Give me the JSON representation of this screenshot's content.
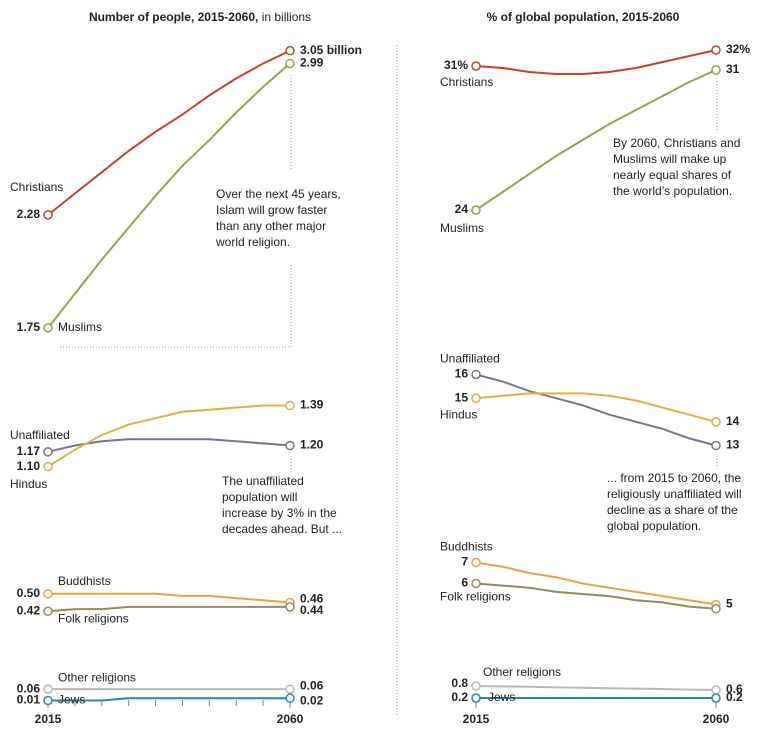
{
  "chart_data": [
    {
      "type": "line",
      "title": "Number of people, 2015-2060,",
      "subtitle": "in billions",
      "x": [
        2015,
        2020,
        2025,
        2030,
        2035,
        2040,
        2045,
        2050,
        2055,
        2060
      ],
      "xlim": [
        2015,
        2060
      ],
      "xticks": [
        2015,
        2060
      ],
      "xminorticks": [
        2020,
        2025,
        2030,
        2035,
        2040,
        2045,
        2050,
        2055
      ],
      "groups": [
        {
          "ylim": [
            1.74,
            3.1
          ],
          "series": [
            {
              "name": "Christians",
              "color": "#c8412b",
              "values": [
                2.28,
                2.38,
                2.48,
                2.58,
                2.67,
                2.75,
                2.84,
                2.92,
                2.99,
                3.05
              ],
              "value_labels": [
                "2.28",
                null,
                null,
                null,
                null,
                null,
                null,
                null,
                null,
                "3.05 billion"
              ]
            },
            {
              "name": "Muslims",
              "color": "#8fa84a",
              "values": [
                1.75,
                1.91,
                2.07,
                2.22,
                2.37,
                2.51,
                2.63,
                2.76,
                2.88,
                2.99
              ],
              "value_labels": [
                "1.75",
                null,
                null,
                null,
                null,
                null,
                null,
                null,
                null,
                "2.99"
              ]
            }
          ]
        },
        {
          "ylim": [
            1.06,
            1.44
          ],
          "series": [
            {
              "name": "Unaffiliated",
              "color": "#7b7296",
              "values": [
                1.17,
                1.2,
                1.22,
                1.23,
                1.23,
                1.23,
                1.23,
                1.22,
                1.21,
                1.2
              ],
              "value_labels": [
                "1.17",
                null,
                null,
                null,
                null,
                null,
                null,
                null,
                null,
                "1.20"
              ]
            },
            {
              "name": "Hindus",
              "color": "#e0b040",
              "values": [
                1.1,
                1.18,
                1.25,
                1.3,
                1.33,
                1.36,
                1.37,
                1.38,
                1.39,
                1.39
              ],
              "value_labels": [
                "1.10",
                null,
                null,
                null,
                null,
                null,
                null,
                null,
                null,
                "1.39"
              ]
            }
          ]
        },
        {
          "ylim": [
            0.38,
            0.54
          ],
          "series": [
            {
              "name": "Buddhists",
              "color": "#eaa33f",
              "values": [
                0.5,
                0.5,
                0.5,
                0.5,
                0.5,
                0.49,
                0.49,
                0.48,
                0.47,
                0.46
              ],
              "value_labels": [
                "0.50",
                null,
                null,
                null,
                null,
                null,
                null,
                null,
                null,
                "0.46"
              ]
            },
            {
              "name": "Folk religions",
              "color": "#978a5a",
              "values": [
                0.42,
                0.43,
                0.43,
                0.44,
                0.44,
                0.44,
                0.44,
                0.44,
                0.44,
                0.44
              ],
              "value_labels": [
                "0.42",
                null,
                null,
                null,
                null,
                null,
                null,
                null,
                null,
                "0.44"
              ]
            }
          ]
        },
        {
          "ylim": [
            -0.01,
            0.1
          ],
          "series": [
            {
              "name": "Other religions",
              "color": "#b8b8b8",
              "values": [
                0.06,
                0.06,
                0.06,
                0.06,
                0.06,
                0.06,
                0.06,
                0.06,
                0.06,
                0.06
              ],
              "value_labels": [
                "0.06",
                null,
                null,
                null,
                null,
                null,
                null,
                null,
                null,
                "0.06"
              ]
            },
            {
              "name": "Jews",
              "color": "#2a87b5",
              "values": [
                0.01,
                0.01,
                0.01,
                0.02,
                0.02,
                0.02,
                0.02,
                0.02,
                0.02,
                0.02
              ],
              "value_labels": [
                "0.01",
                null,
                null,
                null,
                null,
                null,
                null,
                null,
                null,
                "0.02"
              ]
            }
          ]
        }
      ],
      "annotations": [
        {
          "lines": [
            "Over the next 45 years,",
            "Islam will grow faster",
            "than any other major",
            "world religion."
          ]
        },
        {
          "lines": [
            "The unaffiliated",
            "population will",
            "increase by 3% in the",
            "decades ahead. But ..."
          ]
        }
      ]
    },
    {
      "type": "line",
      "title": "% of global population, 2015-2060",
      "x": [
        2015,
        2020,
        2025,
        2030,
        2035,
        2040,
        2045,
        2050,
        2055,
        2060
      ],
      "xlim": [
        2015,
        2060
      ],
      "xticks": [
        2015,
        2060
      ],
      "groups": [
        {
          "ylim": [
            23.5,
            32.5
          ],
          "series": [
            {
              "name": "Christians",
              "color": "#c8412b",
              "values": [
                31.2,
                31.1,
                30.9,
                30.8,
                30.8,
                30.9,
                31.1,
                31.4,
                31.7,
                32.0
              ],
              "value_labels": [
                "31%",
                null,
                null,
                null,
                null,
                null,
                null,
                null,
                null,
                "32%"
              ]
            },
            {
              "name": "Muslims",
              "color": "#8fa84a",
              "values": [
                24,
                24.9,
                25.8,
                26.7,
                27.5,
                28.3,
                29.0,
                29.7,
                30.4,
                31
              ],
              "value_labels": [
                "24",
                null,
                null,
                null,
                null,
                null,
                null,
                null,
                null,
                "31"
              ]
            }
          ]
        },
        {
          "ylim": [
            12.6,
            16.4
          ],
          "series": [
            {
              "name": "Unaffiliated",
              "color": "#7b7296",
              "values": [
                16,
                15.7,
                15.3,
                15.0,
                14.7,
                14.3,
                14.0,
                13.7,
                13.3,
                13
              ],
              "value_labels": [
                "16",
                null,
                null,
                null,
                null,
                null,
                null,
                null,
                null,
                "13"
              ]
            },
            {
              "name": "Hindus",
              "color": "#e0b040",
              "values": [
                15,
                15.1,
                15.2,
                15.2,
                15.2,
                15.1,
                14.9,
                14.6,
                14.3,
                14
              ],
              "value_labels": [
                "15",
                null,
                null,
                null,
                null,
                null,
                null,
                null,
                null,
                "14"
              ]
            }
          ]
        },
        {
          "ylim": [
            4.5,
            7.5
          ],
          "series": [
            {
              "name": "Buddhists",
              "color": "#eaa33f",
              "values": [
                7,
                6.8,
                6.5,
                6.3,
                6.0,
                5.8,
                5.6,
                5.4,
                5.2,
                5.0
              ],
              "value_labels": [
                "7",
                null,
                null,
                null,
                null,
                null,
                null,
                null,
                null,
                "5"
              ]
            },
            {
              "name": "Folk religions",
              "color": "#978a5a",
              "values": [
                6.0,
                5.9,
                5.8,
                5.6,
                5.5,
                5.4,
                5.2,
                5.1,
                4.9,
                4.8
              ],
              "value_labels": [
                "6",
                null,
                null,
                null,
                null,
                null,
                null,
                null,
                null,
                null
              ]
            }
          ]
        },
        {
          "ylim": [
            -0.15,
            1.2
          ],
          "series": [
            {
              "name": "Other religions",
              "color": "#b8b8b8",
              "values": [
                0.8,
                0.78,
                0.76,
                0.73,
                0.71,
                0.69,
                0.67,
                0.65,
                0.62,
                0.6
              ],
              "value_labels": [
                "0.8",
                null,
                null,
                null,
                null,
                null,
                null,
                null,
                null,
                "0.6"
              ]
            },
            {
              "name": "Jews",
              "color": "#2a87b5",
              "values": [
                0.2,
                0.2,
                0.2,
                0.2,
                0.2,
                0.2,
                0.2,
                0.2,
                0.2,
                0.2
              ],
              "value_labels": [
                "0.2",
                null,
                null,
                null,
                null,
                null,
                null,
                null,
                null,
                "0.2"
              ]
            }
          ]
        }
      ],
      "annotations": [
        {
          "lines": [
            "By 2060, Christians and",
            "Muslims will make up",
            "nearly equal shares of",
            "the world’s population."
          ]
        },
        {
          "lines": [
            "... from 2015 to 2060, the",
            "religiously unaffiliated will",
            "decline as a share of the",
            "global population."
          ]
        }
      ]
    }
  ]
}
